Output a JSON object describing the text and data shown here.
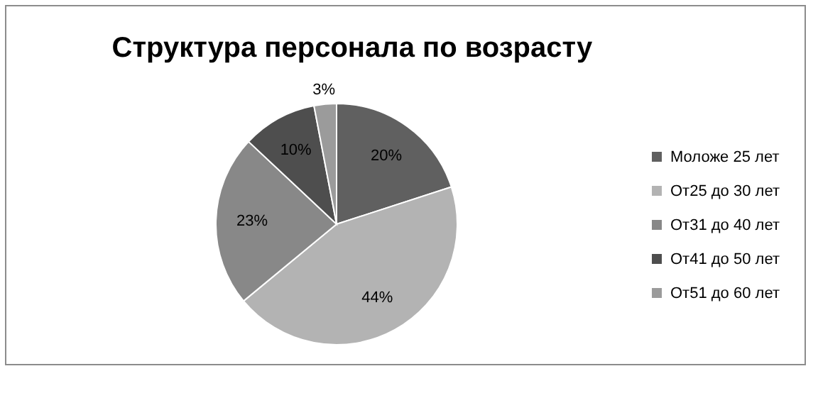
{
  "chart_data": {
    "type": "pie",
    "title": "Структура персонала по возрасту",
    "categories": [
      "Моложе 25 лет",
      "От25 до 30 лет",
      "От31 до 40 лет",
      "От41 до 50 лет",
      "От51 до 60 лет"
    ],
    "values": [
      20,
      44,
      23,
      10,
      3
    ],
    "colors": [
      "#606060",
      "#b3b3b3",
      "#888888",
      "#4e4e4e",
      "#9b9b9b"
    ],
    "value_labels": [
      "20%",
      "44%",
      "23%",
      "10%",
      "3%"
    ],
    "legend": "right"
  }
}
